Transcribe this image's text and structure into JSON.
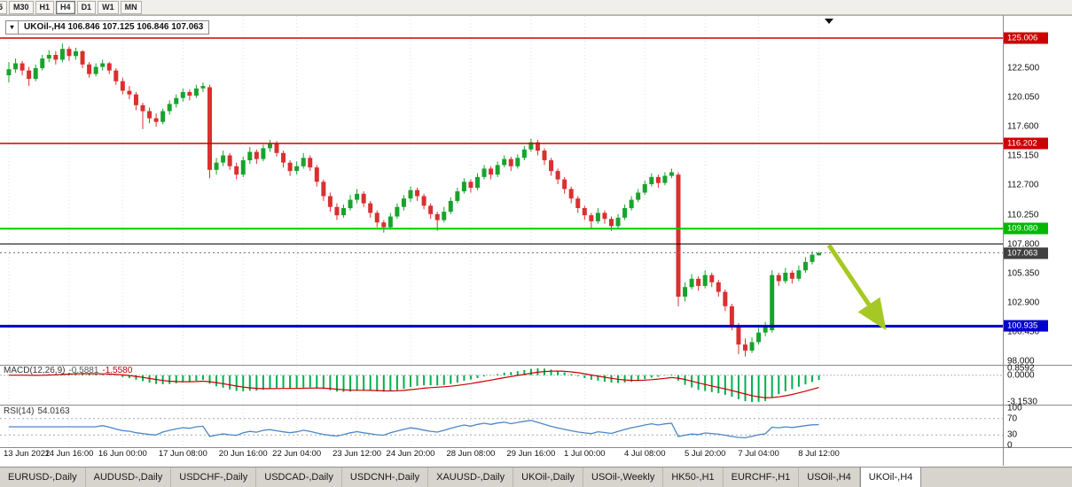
{
  "toolbar": {
    "timeframes": [
      "5",
      "M30",
      "H1",
      "H4",
      "D1",
      "W1",
      "MN"
    ],
    "active": "H4"
  },
  "legend": {
    "dropdown_icon": "▾",
    "text": "UKOil-,H4 106.846 107.125 106.846 107.063"
  },
  "price_axis": {
    "ticks": [
      "122.500",
      "120.050",
      "117.600",
      "115.150",
      "112.700",
      "110.250",
      "107.800",
      "105.350",
      "102.900",
      "100.450",
      "98.000"
    ]
  },
  "indicators": {
    "macd": {
      "label": "MACD(12,26,9)",
      "value": "-0.5881",
      "signal": "-1.5580",
      "axis": [
        "0.8592",
        "0.0000",
        "-3.1530"
      ],
      "histogram_color": "#00b050",
      "signal_color": "#cc0000"
    },
    "rsi": {
      "label": "RSI(14)",
      "value": "54.0163",
      "axis": [
        "100",
        "70",
        "30",
        "0"
      ],
      "line_color": "#4a87c7",
      "levels": [
        70,
        30
      ]
    }
  },
  "tabs": {
    "items": [
      "EURUSD-,Daily",
      "AUDUSD-,Daily",
      "USDCHF-,Daily",
      "USDCAD-,Daily",
      "USDCNH-,Daily",
      "XAUUSD-,Daily",
      "UKOil-,Daily",
      "USOil-,Weekly",
      "HK50-,H1",
      "EURCHF-,H1",
      "USOil-,H4",
      "UKOil-,H4"
    ],
    "active": "UKOil-,H4"
  },
  "chart_data": {
    "type": "candlestick",
    "symbol": "UKOil-",
    "timeframe": "H4",
    "ohlc_display": {
      "open": "106.846",
      "high": "107.125",
      "low": "106.846",
      "close": "107.063"
    },
    "up_color": "#18a32c",
    "down_color": "#d93030",
    "y_range": [
      97.0,
      125.8
    ],
    "x_labels": [
      {
        "label": "13 Jun 2022",
        "bar": 0
      },
      {
        "label": "14 Jun 16:00",
        "bar": 9
      },
      {
        "label": "16 Jun 00:00",
        "bar": 17
      },
      {
        "label": "17 Jun 08:00",
        "bar": 26
      },
      {
        "label": "20 Jun 16:00",
        "bar": 35
      },
      {
        "label": "22 Jun 04:00",
        "bar": 43
      },
      {
        "label": "23 Jun 12:00",
        "bar": 52
      },
      {
        "label": "24 Jun 20:00",
        "bar": 60
      },
      {
        "label": "28 Jun 08:00",
        "bar": 69
      },
      {
        "label": "29 Jun 16:00",
        "bar": 78
      },
      {
        "label": "1 Jul 00:00",
        "bar": 86
      },
      {
        "label": "4 Jul 08:00",
        "bar": 95
      },
      {
        "label": "5 Jul 20:00",
        "bar": 104
      },
      {
        "label": "7 Jul 04:00",
        "bar": 112
      },
      {
        "label": "8 Jul 12:00",
        "bar": 121
      }
    ],
    "levels": [
      {
        "price": 125.006,
        "color": "#cc0000",
        "width": 1.5,
        "badge": true,
        "badge_color": "#cc0000"
      },
      {
        "price": 116.202,
        "color": "#cc0000",
        "width": 1.5,
        "badge": true,
        "badge_color": "#cc0000"
      },
      {
        "price": 109.08,
        "color": "#00cc00",
        "width": 2,
        "badge": true,
        "badge_color": "#00b800"
      },
      {
        "price": 107.8,
        "color": "#000000",
        "width": 1,
        "badge": false,
        "badge_color": "#000000"
      },
      {
        "price": 100.935,
        "color": "#0000cd",
        "width": 3,
        "badge": true,
        "badge_color": "#0000cd"
      }
    ],
    "current_price": {
      "value": 107.063,
      "badge_color": "#404040"
    },
    "annotation_arrow": {
      "from_bar": 122.5,
      "from_price": 107.7,
      "to_bar": 130.5,
      "to_price": 101.05,
      "color": "#a6c824"
    },
    "candles": [
      [
        121.9,
        123.0,
        121.3,
        122.4
      ],
      [
        122.4,
        123.3,
        122.1,
        122.9
      ],
      [
        122.9,
        123.1,
        121.9,
        122.3
      ],
      [
        122.3,
        122.6,
        121.0,
        121.6
      ],
      [
        121.6,
        122.8,
        121.4,
        122.5
      ],
      [
        122.5,
        123.6,
        122.3,
        123.3
      ],
      [
        123.3,
        124.0,
        123.0,
        123.6
      ],
      [
        123.6,
        123.9,
        122.8,
        123.2
      ],
      [
        123.2,
        124.55,
        123.0,
        124.1
      ],
      [
        124.1,
        124.3,
        123.1,
        123.5
      ],
      [
        123.5,
        124.2,
        123.2,
        123.9
      ],
      [
        123.9,
        124.0,
        122.5,
        122.8
      ],
      [
        122.8,
        123.0,
        121.7,
        122.0
      ],
      [
        122.0,
        122.9,
        121.8,
        122.6
      ],
      [
        122.6,
        123.2,
        122.3,
        122.9
      ],
      [
        122.9,
        123.0,
        122.0,
        122.3
      ],
      [
        122.3,
        122.5,
        121.1,
        121.4
      ],
      [
        121.4,
        121.7,
        120.3,
        120.6
      ],
      [
        120.6,
        121.0,
        119.9,
        120.3
      ],
      [
        120.3,
        120.5,
        119.0,
        119.4
      ],
      [
        119.4,
        119.6,
        117.4,
        118.9
      ],
      [
        118.9,
        119.2,
        117.9,
        118.3
      ],
      [
        118.3,
        118.7,
        117.6,
        118.0
      ],
      [
        118.0,
        119.1,
        117.8,
        118.9
      ],
      [
        118.9,
        119.8,
        118.6,
        119.5
      ],
      [
        119.5,
        120.3,
        119.2,
        120.0
      ],
      [
        120.0,
        120.8,
        119.7,
        120.5
      ],
      [
        120.5,
        120.7,
        119.8,
        120.2
      ],
      [
        120.2,
        121.1,
        120.0,
        120.8
      ],
      [
        120.8,
        121.3,
        120.5,
        121.0
      ],
      [
        120.9,
        121.1,
        113.3,
        114.0
      ],
      [
        114.0,
        115.0,
        113.6,
        114.6
      ],
      [
        114.6,
        115.6,
        114.3,
        115.2
      ],
      [
        115.2,
        115.4,
        114.0,
        114.3
      ],
      [
        114.3,
        114.6,
        113.2,
        113.6
      ],
      [
        113.6,
        115.1,
        113.4,
        114.8
      ],
      [
        114.8,
        115.9,
        114.5,
        115.5
      ],
      [
        115.5,
        115.7,
        114.5,
        114.9
      ],
      [
        114.9,
        116.1,
        114.7,
        115.8
      ],
      [
        115.8,
        116.5,
        115.5,
        116.2
      ],
      [
        116.2,
        116.4,
        115.1,
        115.4
      ],
      [
        115.4,
        115.6,
        114.2,
        114.6
      ],
      [
        114.6,
        114.8,
        113.5,
        113.9
      ],
      [
        113.9,
        114.7,
        113.6,
        114.3
      ],
      [
        114.3,
        115.4,
        114.1,
        115.0
      ],
      [
        115.0,
        115.2,
        113.9,
        114.2
      ],
      [
        114.2,
        114.4,
        112.6,
        113.0
      ],
      [
        113.0,
        113.2,
        111.4,
        111.8
      ],
      [
        111.8,
        112.1,
        110.5,
        110.9
      ],
      [
        110.9,
        111.2,
        109.8,
        110.2
      ],
      [
        110.2,
        111.1,
        110.0,
        110.8
      ],
      [
        110.8,
        111.9,
        110.6,
        111.5
      ],
      [
        111.5,
        112.4,
        111.2,
        112.0
      ],
      [
        112.0,
        112.2,
        110.9,
        111.2
      ],
      [
        111.2,
        111.4,
        110.0,
        110.4
      ],
      [
        110.4,
        110.6,
        109.2,
        109.6
      ],
      [
        109.6,
        109.8,
        108.75,
        109.2
      ],
      [
        109.2,
        110.4,
        109.0,
        110.1
      ],
      [
        110.1,
        111.2,
        109.9,
        110.9
      ],
      [
        110.9,
        111.9,
        110.6,
        111.6
      ],
      [
        111.6,
        112.6,
        111.3,
        112.3
      ],
      [
        112.3,
        112.5,
        111.4,
        111.8
      ],
      [
        111.8,
        112.0,
        110.7,
        111.0
      ],
      [
        111.0,
        111.2,
        109.9,
        110.3
      ],
      [
        110.3,
        110.5,
        108.9,
        109.8
      ],
      [
        109.8,
        110.9,
        109.6,
        110.5
      ],
      [
        110.5,
        111.7,
        110.3,
        111.4
      ],
      [
        111.4,
        112.5,
        111.2,
        112.2
      ],
      [
        112.2,
        113.3,
        112.0,
        113.0
      ],
      [
        113.0,
        113.2,
        112.1,
        112.5
      ],
      [
        112.5,
        113.7,
        112.3,
        113.4
      ],
      [
        113.4,
        114.4,
        113.2,
        114.1
      ],
      [
        114.1,
        114.3,
        113.2,
        113.6
      ],
      [
        113.6,
        114.7,
        113.4,
        114.4
      ],
      [
        114.4,
        115.2,
        114.2,
        114.9
      ],
      [
        114.9,
        115.1,
        113.9,
        114.3
      ],
      [
        114.3,
        115.3,
        114.1,
        115.0
      ],
      [
        115.0,
        116.0,
        114.8,
        115.7
      ],
      [
        115.7,
        116.6,
        115.5,
        116.3
      ],
      [
        116.3,
        116.5,
        115.2,
        115.6
      ],
      [
        115.6,
        115.8,
        114.4,
        114.8
      ],
      [
        114.8,
        115.0,
        113.5,
        113.9
      ],
      [
        113.9,
        114.1,
        112.8,
        113.2
      ],
      [
        113.2,
        113.4,
        112.0,
        112.4
      ],
      [
        112.4,
        112.6,
        111.2,
        111.6
      ],
      [
        111.6,
        111.8,
        110.4,
        110.8
      ],
      [
        110.8,
        111.0,
        109.8,
        110.2
      ],
      [
        110.2,
        110.4,
        109.1,
        109.7
      ],
      [
        109.7,
        110.8,
        109.5,
        110.4
      ],
      [
        110.4,
        110.6,
        109.5,
        109.9
      ],
      [
        109.9,
        110.1,
        108.9,
        109.3
      ],
      [
        109.3,
        110.3,
        109.1,
        110.0
      ],
      [
        110.0,
        111.1,
        109.8,
        110.8
      ],
      [
        110.8,
        111.8,
        110.6,
        111.5
      ],
      [
        111.5,
        112.4,
        111.3,
        112.1
      ],
      [
        112.1,
        113.1,
        111.9,
        112.8
      ],
      [
        112.8,
        113.7,
        112.6,
        113.4
      ],
      [
        113.4,
        113.6,
        112.5,
        112.9
      ],
      [
        112.9,
        113.8,
        112.7,
        113.5
      ],
      [
        113.5,
        114.1,
        113.3,
        113.8
      ],
      [
        113.6,
        113.8,
        102.6,
        103.4
      ],
      [
        103.4,
        104.6,
        103.0,
        104.2
      ],
      [
        104.2,
        105.3,
        104.0,
        104.9
      ],
      [
        104.9,
        105.1,
        103.9,
        104.3
      ],
      [
        104.3,
        105.6,
        104.1,
        105.2
      ],
      [
        105.2,
        105.4,
        104.2,
        104.6
      ],
      [
        104.6,
        104.8,
        103.4,
        103.8
      ],
      [
        103.8,
        104.0,
        102.2,
        102.6
      ],
      [
        102.6,
        102.8,
        100.6,
        101.0
      ],
      [
        101.0,
        101.2,
        98.6,
        99.4
      ],
      [
        99.4,
        99.9,
        98.4,
        98.9
      ],
      [
        98.9,
        100.0,
        98.7,
        99.6
      ],
      [
        99.6,
        100.8,
        99.4,
        100.4
      ],
      [
        100.4,
        101.3,
        100.1,
        100.9
      ],
      [
        100.6,
        105.6,
        100.4,
        105.2
      ],
      [
        105.2,
        105.4,
        104.3,
        104.7
      ],
      [
        104.7,
        105.8,
        104.5,
        105.4
      ],
      [
        105.4,
        105.6,
        104.5,
        104.9
      ],
      [
        104.9,
        106.0,
        104.7,
        105.6
      ],
      [
        105.6,
        106.7,
        105.4,
        106.3
      ],
      [
        106.3,
        107.2,
        106.1,
        106.9
      ],
      [
        106.85,
        107.13,
        106.85,
        107.06
      ]
    ]
  }
}
